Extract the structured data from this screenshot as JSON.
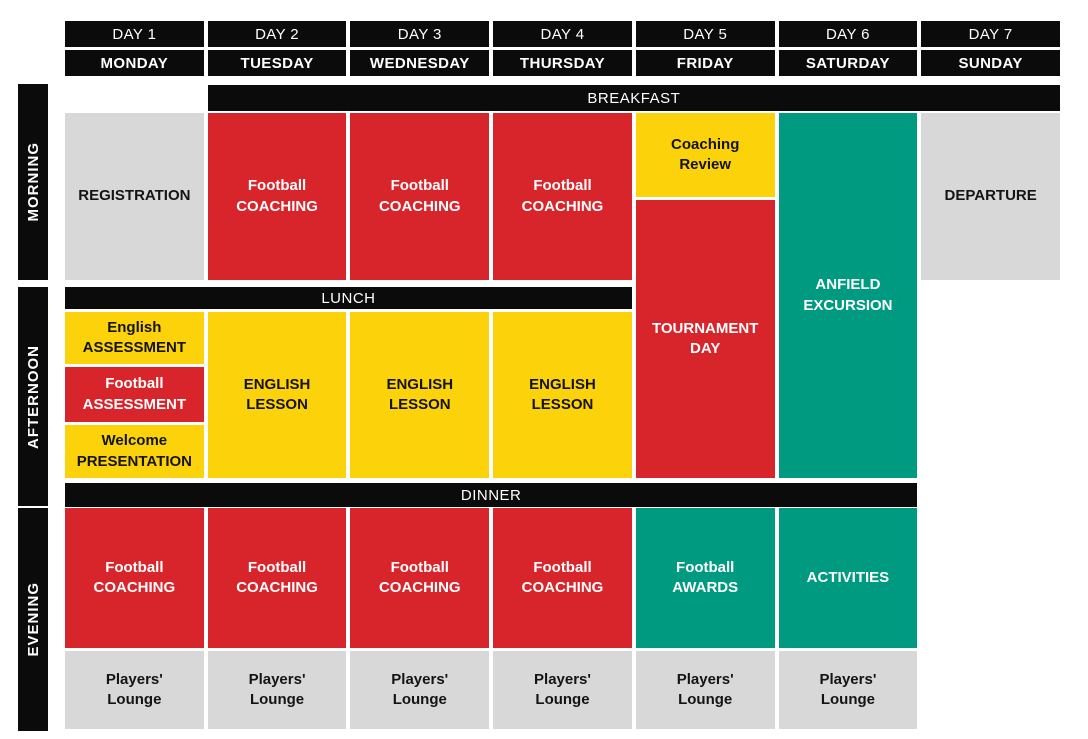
{
  "colors": {
    "red": "#d8252b",
    "yellow": "#fcd20a",
    "teal": "#009a80",
    "gray": "#d8d8d8",
    "bar_black": "#0b0b0b",
    "page_bg": "#ffffff"
  },
  "header": {
    "days": [
      {
        "num": "DAY 1",
        "name": "MONDAY"
      },
      {
        "num": "DAY 2",
        "name": "TUESDAY"
      },
      {
        "num": "DAY 3",
        "name": "WEDNESDAY"
      },
      {
        "num": "DAY 4",
        "name": "THURSDAY"
      },
      {
        "num": "DAY 5",
        "name": "FRIDAY"
      },
      {
        "num": "DAY 6",
        "name": "SATURDAY"
      },
      {
        "num": "DAY 7",
        "name": "SUNDAY"
      }
    ]
  },
  "rails": {
    "morning": "MORNING",
    "afternoon": "AFTERNOON",
    "evening": "EVENING"
  },
  "meals": {
    "breakfast": "BREAKFAST",
    "lunch": "LUNCH",
    "dinner": "DINNER"
  },
  "labels": {
    "registration": "REGISTRATION",
    "football_coaching": "Football\nCOACHING",
    "coaching_review": "Coaching\nReview",
    "tournament_day": "TOURNAMENT\nDAY",
    "anfield_excursion": "ANFIELD\nEXCURSION",
    "departure": "DEPARTURE",
    "english_assessment": "English\nASSESSMENT",
    "football_assessment": "Football\nASSESSMENT",
    "welcome_presentation": "Welcome\nPRESENTATION",
    "english_lesson": "ENGLISH\nLESSON",
    "football_awards": "Football\nAWARDS",
    "activities": "ACTIVITIES",
    "players_lounge": "Players'\nLounge"
  }
}
